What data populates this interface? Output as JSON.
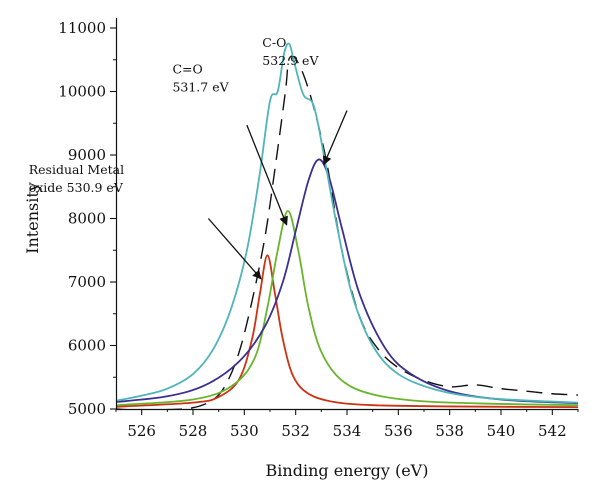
{
  "chart_data": {
    "type": "line",
    "title": "",
    "xlabel": "Binding energy (eV)",
    "ylabel": "Intensity",
    "xlim": [
      525,
      543
    ],
    "ylim": [
      5000,
      11000
    ],
    "xticks": [
      526,
      528,
      530,
      532,
      534,
      536,
      538,
      540,
      542
    ],
    "yticks": [
      5000,
      6000,
      7000,
      8000,
      9000,
      10000,
      11000
    ],
    "grid": false,
    "legend": "none",
    "series": [
      {
        "key": "measured",
        "color": "#111111",
        "dashed": true,
        "x": [
          525,
          526,
          527,
          528,
          528.8,
          529.3,
          529.8,
          530.3,
          530.8,
          531.2,
          531.6,
          531.75,
          532.1,
          532.6,
          533.2,
          533.8,
          534.5,
          535.2,
          536,
          537,
          538,
          539,
          540,
          541,
          542,
          543
        ],
        "y": [
          5000,
          4980,
          4990,
          5020,
          5150,
          5400,
          5900,
          6700,
          7700,
          8800,
          10000,
          10520,
          10450,
          9900,
          8900,
          7500,
          6450,
          5950,
          5650,
          5450,
          5350,
          5380,
          5320,
          5280,
          5240,
          5220
        ]
      },
      {
        "key": "residual-metal-oxide",
        "color": "#cc3312",
        "center": 530.9,
        "height": 7420,
        "baseline": 5030,
        "x": [
          525,
          528,
          529,
          529.8,
          530.3,
          530.6,
          530.9,
          531.2,
          531.5,
          531.9,
          532.5,
          533.5,
          535,
          538,
          543
        ],
        "y": [
          5035,
          5100,
          5190,
          5470,
          6100,
          6800,
          7420,
          6800,
          6100,
          5520,
          5240,
          5110,
          5060,
          5040,
          5030
        ]
      },
      {
        "key": "c-double-o",
        "color": "#6ab42d",
        "center": 531.7,
        "height": 8120,
        "baseline": 5050,
        "x": [
          525,
          528,
          529.5,
          530.4,
          530.9,
          531.3,
          531.7,
          532.1,
          532.5,
          533,
          533.8,
          535,
          537,
          540,
          543
        ],
        "y": [
          5060,
          5150,
          5360,
          5800,
          6600,
          7500,
          8120,
          7500,
          6600,
          5900,
          5450,
          5230,
          5120,
          5080,
          5060
        ]
      },
      {
        "key": "c-o",
        "color": "#3b2f8f",
        "center": 532.9,
        "height": 8930,
        "baseline": 5050,
        "x": [
          525,
          527,
          528.5,
          529.8,
          530.8,
          531.5,
          532,
          532.5,
          532.9,
          533.3,
          533.8,
          534.5,
          535.5,
          536.5,
          538,
          540,
          543
        ],
        "y": [
          5110,
          5200,
          5380,
          5750,
          6300,
          7000,
          7800,
          8600,
          8930,
          8650,
          7850,
          6800,
          5950,
          5550,
          5280,
          5150,
          5090
        ]
      },
      {
        "key": "envelope",
        "color": "#4fb5b8",
        "x": [
          525,
          526,
          527,
          528,
          528.8,
          529.5,
          530.1,
          530.6,
          531.0,
          531.3,
          531.55,
          531.75,
          531.95,
          532.3,
          532.7,
          533.1,
          533.6,
          534.2,
          535,
          536,
          537.5,
          539.5,
          543
        ],
        "y": [
          5130,
          5210,
          5320,
          5550,
          5950,
          6600,
          7500,
          8700,
          9850,
          10000,
          10600,
          10750,
          10450,
          9950,
          9780,
          9000,
          7900,
          6800,
          6000,
          5550,
          5300,
          5170,
          5100
        ]
      }
    ],
    "annotations": [
      {
        "lines": [
          "C-O",
          "532.9 eV"
        ],
        "text_x": 530.7,
        "text_y": 10700,
        "arrow_from": [
          534.0,
          9700
        ],
        "arrow_to": [
          533.1,
          8850
        ]
      },
      {
        "lines": [
          "C=O",
          "531.7 eV"
        ],
        "text_x": 527.2,
        "text_y": 10280,
        "arrow_from": [
          530.1,
          9470
        ],
        "arrow_to": [
          531.65,
          7900
        ]
      },
      {
        "lines": [
          "Residual Metal",
          "oxide 530.9 eV"
        ],
        "text_x": 521.6,
        "text_y": 8700,
        "arrow_from": [
          528.6,
          8000
        ],
        "arrow_to": [
          530.65,
          7050
        ]
      }
    ]
  }
}
